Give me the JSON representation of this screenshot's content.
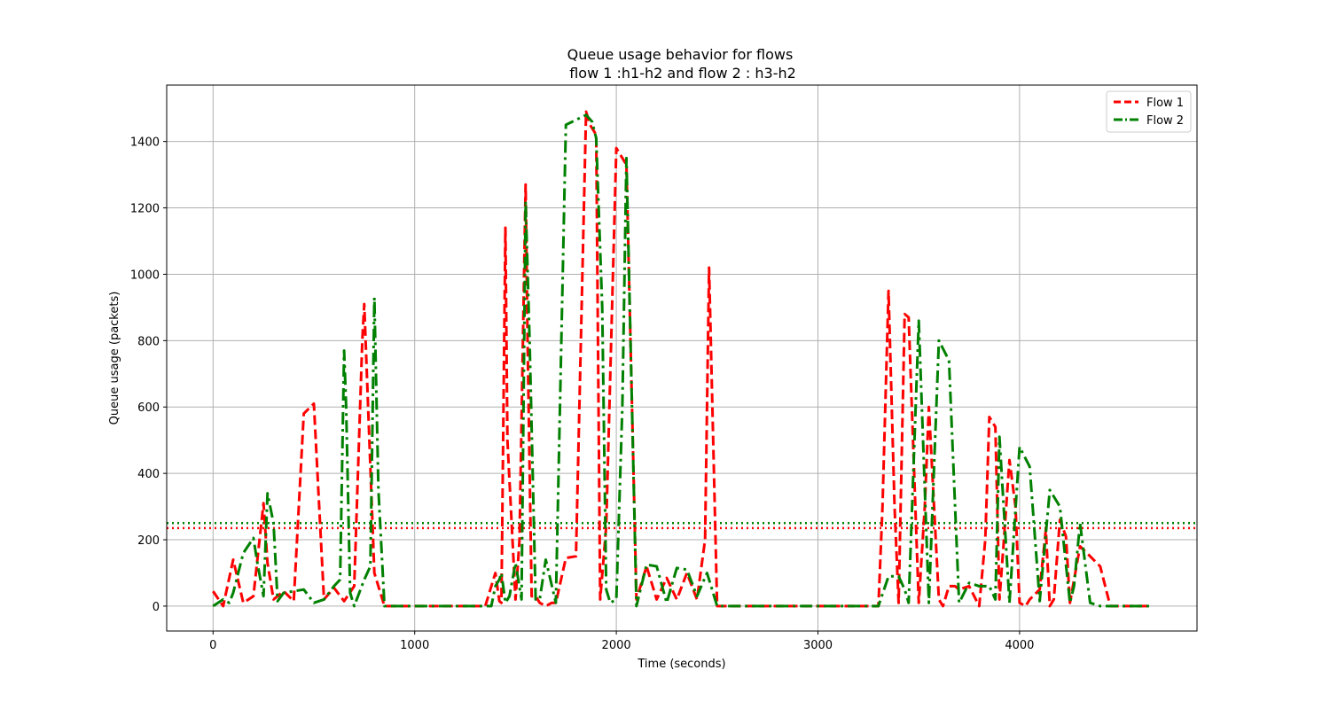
{
  "chart_data": {
    "type": "line",
    "title": "Queue usage behavior for flows",
    "subtitle": "flow 1 :h1-h2 and flow 2 : h3-h2",
    "xlabel": "Time (seconds)",
    "ylabel": "Queue usage (packets)",
    "xlim": [
      -230,
      4880
    ],
    "ylim": [
      -75,
      1570
    ],
    "xticks": [
      0,
      1000,
      2000,
      3000,
      4000
    ],
    "yticks": [
      0,
      200,
      400,
      600,
      800,
      1000,
      1200,
      1400
    ],
    "grid": true,
    "legend_position": "top-right",
    "series": [
      {
        "name": "Flow 1",
        "color": "#ff0000",
        "style": "dashed",
        "mean": 235,
        "x": [
          0,
          50,
          100,
          150,
          200,
          250,
          270,
          300,
          350,
          400,
          450,
          500,
          550,
          600,
          650,
          700,
          740,
          750,
          800,
          850,
          900,
          1000,
          1100,
          1200,
          1300,
          1350,
          1400,
          1420,
          1430,
          1450,
          1460,
          1500,
          1520,
          1550,
          1560,
          1580,
          1600,
          1620,
          1650,
          1680,
          1700,
          1750,
          1800,
          1850,
          1870,
          1900,
          1920,
          1950,
          2000,
          2050,
          2100,
          2150,
          2200,
          2250,
          2300,
          2350,
          2400,
          2440,
          2460,
          2500,
          2550,
          2600,
          3000,
          3200,
          3250,
          3300,
          3320,
          3350,
          3380,
          3400,
          3430,
          3450,
          3500,
          3530,
          3550,
          3600,
          3620,
          3650,
          3680,
          3700,
          3750,
          3800,
          3830,
          3850,
          3880,
          3900,
          3920,
          3950,
          3980,
          4000,
          4030,
          4050,
          4100,
          4130,
          4150,
          4170,
          4200,
          4230,
          4250,
          4300,
          4350,
          4400,
          4450,
          4500,
          4600,
          4650
        ],
        "y": [
          45,
          0,
          140,
          10,
          30,
          310,
          130,
          20,
          45,
          15,
          580,
          610,
          20,
          55,
          15,
          60,
          800,
          910,
          100,
          0,
          0,
          0,
          0,
          0,
          0,
          0,
          100,
          15,
          10,
          1140,
          500,
          20,
          200,
          1270,
          800,
          30,
          30,
          10,
          0,
          10,
          10,
          145,
          150,
          1490,
          1450,
          1420,
          20,
          240,
          1380,
          1330,
          20,
          120,
          20,
          85,
          20,
          100,
          20,
          200,
          1020,
          0,
          0,
          0,
          0,
          0,
          0,
          0,
          300,
          950,
          300,
          10,
          880,
          870,
          10,
          300,
          600,
          20,
          0,
          60,
          60,
          50,
          60,
          0,
          200,
          570,
          540,
          20,
          180,
          440,
          300,
          10,
          0,
          20,
          50,
          230,
          0,
          20,
          260,
          210,
          10,
          180,
          150,
          120,
          0,
          0,
          0,
          0
        ]
      },
      {
        "name": "Flow 2",
        "color": "#008000",
        "style": "dashdot",
        "mean": 250,
        "x": [
          0,
          50,
          80,
          100,
          150,
          200,
          220,
          250,
          270,
          300,
          320,
          350,
          400,
          450,
          500,
          550,
          600,
          630,
          650,
          660,
          680,
          700,
          750,
          780,
          800,
          820,
          850,
          900,
          1000,
          1100,
          1200,
          1300,
          1350,
          1380,
          1400,
          1420,
          1430,
          1450,
          1470,
          1500,
          1530,
          1550,
          1570,
          1600,
          1620,
          1650,
          1700,
          1750,
          1850,
          1880,
          1900,
          1930,
          1950,
          1970,
          2000,
          2030,
          2050,
          2100,
          2150,
          2200,
          2250,
          2300,
          2350,
          2400,
          2450,
          2500,
          2600,
          3000,
          3200,
          3300,
          3350,
          3400,
          3430,
          3450,
          3500,
          3550,
          3600,
          3650,
          3700,
          3750,
          3800,
          3850,
          3880,
          3900,
          3950,
          4000,
          4050,
          4100,
          4150,
          4200,
          4250,
          4270,
          4300,
          4350,
          4400,
          4500,
          4650
        ],
        "y": [
          0,
          20,
          10,
          40,
          160,
          205,
          130,
          30,
          340,
          250,
          15,
          40,
          45,
          50,
          10,
          20,
          60,
          80,
          770,
          600,
          40,
          0,
          80,
          120,
          930,
          350,
          0,
          0,
          0,
          0,
          0,
          0,
          0,
          0,
          60,
          80,
          100,
          10,
          30,
          130,
          20,
          1220,
          800,
          20,
          20,
          140,
          10,
          1450,
          1480,
          1460,
          1410,
          900,
          50,
          10,
          20,
          600,
          1350,
          0,
          125,
          120,
          10,
          115,
          110,
          30,
          100,
          0,
          0,
          0,
          0,
          0,
          90,
          90,
          50,
          10,
          860,
          10,
          800,
          740,
          10,
          70,
          60,
          60,
          20,
          510,
          10,
          480,
          420,
          15,
          350,
          300,
          10,
          60,
          250,
          10,
          0,
          0,
          0
        ]
      }
    ]
  }
}
